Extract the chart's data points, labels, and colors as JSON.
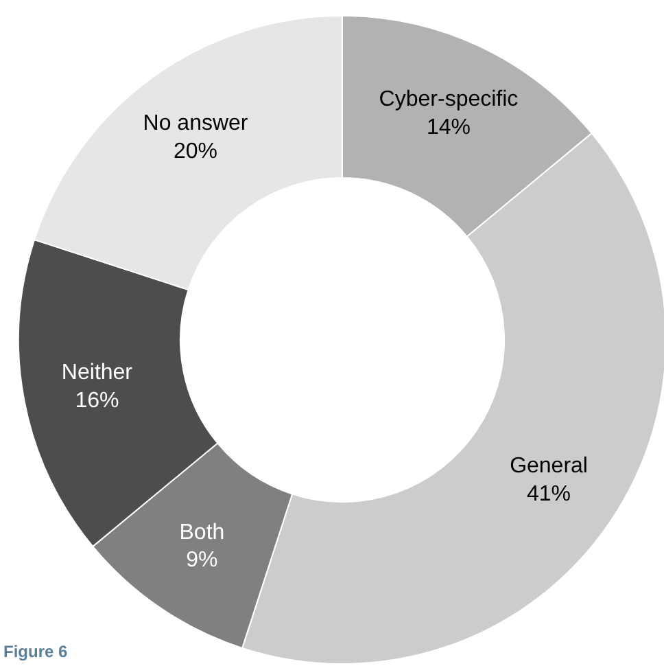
{
  "chart_data": {
    "type": "donut",
    "categories": [
      "Cyber-specific",
      "General",
      "Both",
      "Neither",
      "No answer"
    ],
    "values": [
      14,
      41,
      9,
      16,
      20
    ],
    "value_labels": [
      "14%",
      "41%",
      "9%",
      "16%",
      "20%"
    ],
    "colors": [
      "#b2b2b2",
      "#cccccc",
      "#808080",
      "#4d4d4d",
      "#e6e6e6"
    ],
    "annotations": [
      "Figure 6"
    ]
  }
}
